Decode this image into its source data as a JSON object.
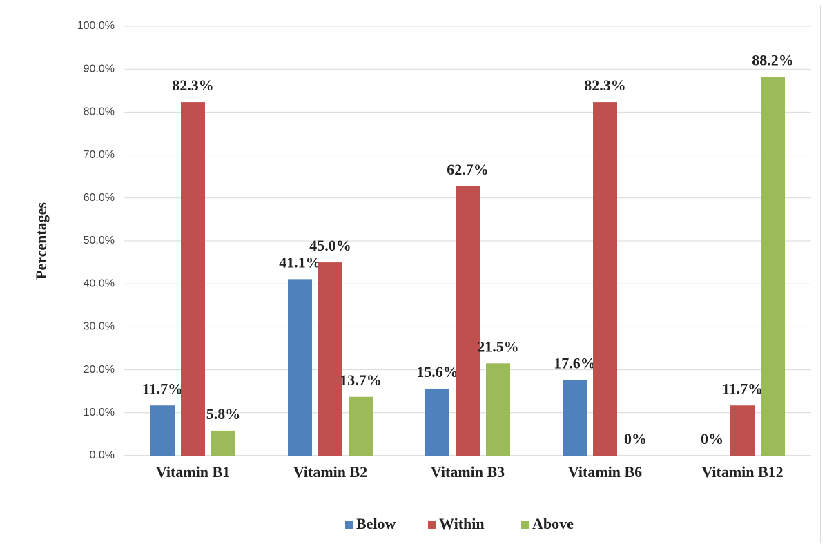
{
  "chart_data": {
    "type": "bar",
    "y_label": "Percentages",
    "categories": [
      "Vitamin B1",
      "Vitamin B2",
      "Vitamin B3",
      "Vitamin B6",
      "Vitamin B12"
    ],
    "series": [
      {
        "name": "Below",
        "color": "#4f81bd",
        "values": [
          11.7,
          41.1,
          15.6,
          17.6,
          0
        ],
        "value_labels": [
          "11.7%",
          "41.1%",
          "15.6%",
          "17.6%",
          "0%"
        ]
      },
      {
        "name": "Within",
        "color": "#c0504d",
        "values": [
          82.3,
          45.0,
          62.7,
          82.3,
          11.7
        ],
        "value_labels": [
          "82.3%",
          "45.0%",
          "62.7%",
          "82.3%",
          "11.7%"
        ]
      },
      {
        "name": "Above",
        "color": "#9bbb59",
        "values": [
          5.8,
          13.7,
          21.5,
          0,
          88.2
        ],
        "value_labels": [
          "5.8%",
          "13.7%",
          "21.5%",
          "0%",
          "88.2%"
        ]
      }
    ],
    "ylim": [
      0,
      100
    ],
    "yticks": [
      {
        "value": 0,
        "label": "0.0%"
      },
      {
        "value": 10,
        "label": "10.0%"
      },
      {
        "value": 20,
        "label": "20.0%"
      },
      {
        "value": 30,
        "label": "30.0%"
      },
      {
        "value": 40,
        "label": "40.0%"
      },
      {
        "value": 50,
        "label": "50.0%"
      },
      {
        "value": 60,
        "label": "60.0%"
      },
      {
        "value": 70,
        "label": "70.0%"
      },
      {
        "value": 80,
        "label": "80.0%"
      },
      {
        "value": 90,
        "label": "90.0%"
      },
      {
        "value": 100,
        "label": "100.0%"
      }
    ],
    "grid": true,
    "legend": "bottom"
  }
}
